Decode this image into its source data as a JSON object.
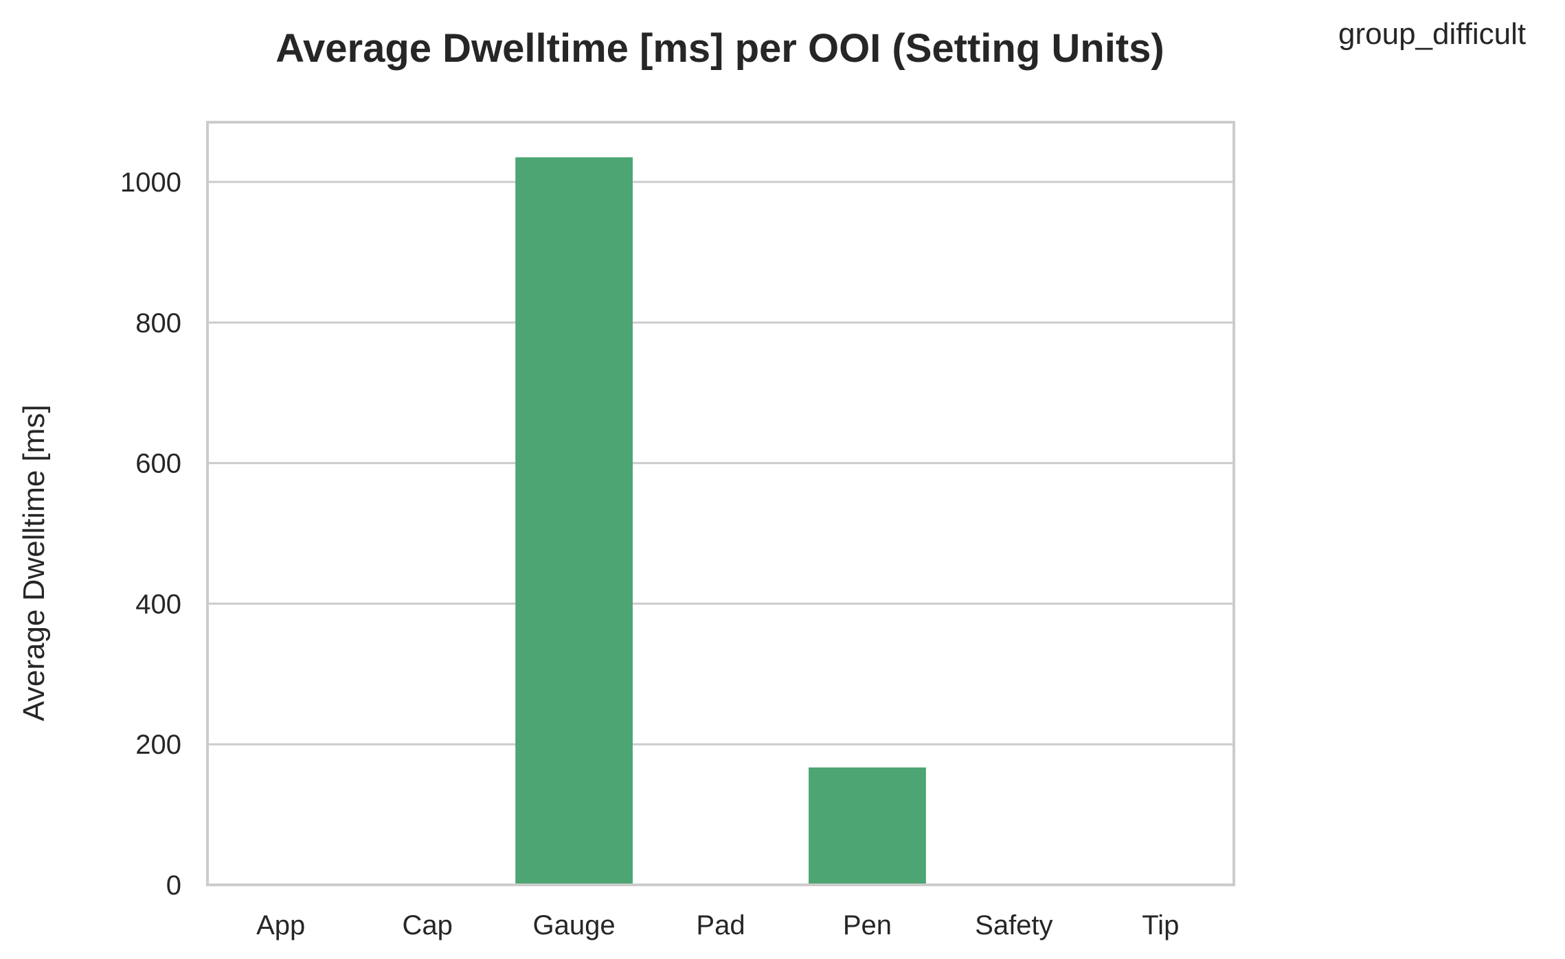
{
  "chart_data": {
    "type": "bar",
    "title": "Average Dwelltime [ms] per OOI (Setting Units)",
    "xlabel": "",
    "ylabel": "Average Dwelltime [ms]",
    "categories": [
      "App",
      "Cap",
      "Gauge",
      "Pad",
      "Pen",
      "Safety",
      "Tip"
    ],
    "series": [
      {
        "name": "group_difficult",
        "values": [
          0,
          0,
          1035,
          0,
          167,
          0,
          0
        ],
        "color": "#4ca572"
      }
    ],
    "legend": {
      "title": "group_difficult",
      "placement": "top-right outside"
    },
    "ylim": [
      0,
      1085
    ],
    "yticks": [
      0,
      200,
      400,
      600,
      800,
      1000
    ],
    "grid": true
  }
}
